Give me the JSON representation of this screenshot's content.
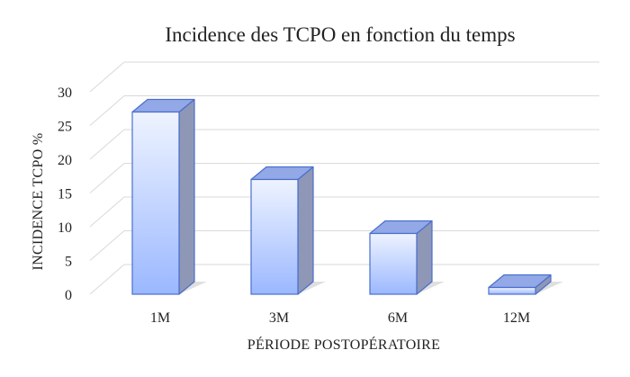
{
  "chart_data": {
    "type": "bar",
    "title": "Incidence des TCPO en fonction du temps",
    "xlabel": "PÉRIODE POSTOPÉRATOIRE",
    "ylabel": "INCIDENCE TCPO %",
    "categories": [
      "1M",
      "3M",
      "6M",
      "12M"
    ],
    "values": [
      27,
      17,
      9,
      1
    ],
    "yticks": [
      "0",
      "5",
      "10",
      "15",
      "20",
      "25",
      "30"
    ],
    "ylim": [
      0,
      30
    ],
    "grid": true,
    "legend": "none",
    "colors": {
      "bar_front_top": "#eef3ff",
      "bar_front_bottom": "#9bb8ff",
      "bar_side": "#8f97b6",
      "bar_top": "#93a8e6",
      "bar_border": "#4a6fcf",
      "shadow": "#c9c9c9",
      "grid": "#d9d9d9"
    }
  }
}
